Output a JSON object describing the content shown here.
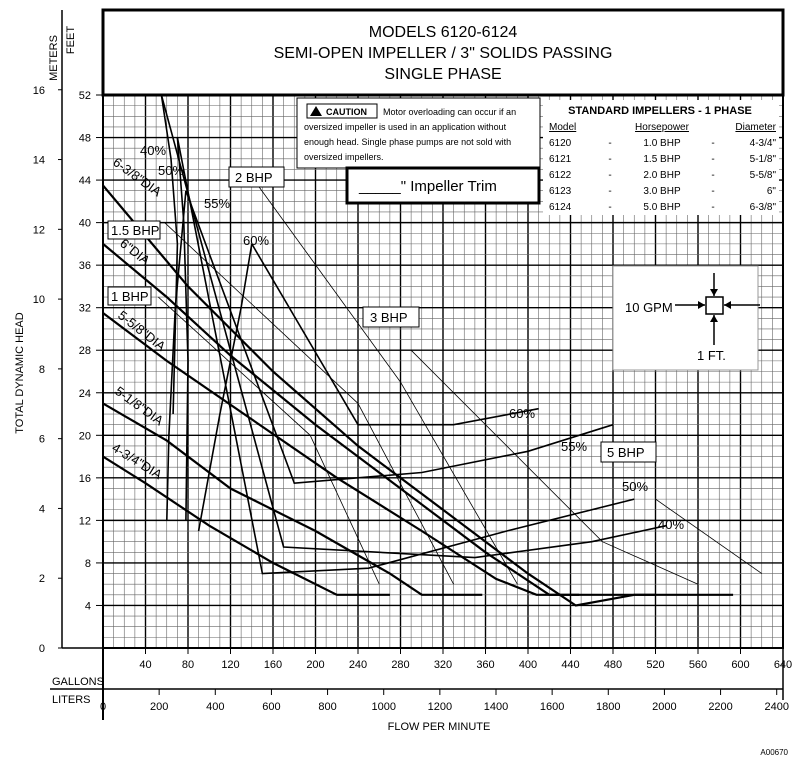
{
  "chart_data": {
    "type": "line",
    "title": [
      "MODELS 6120-6124",
      "SEMI-OPEN IMPELLER / 3\" SOLIDS PASSING",
      "SINGLE PHASE"
    ],
    "axis_unit_labels": {
      "meters": "METERS",
      "feet": "FEET",
      "gallons": "GALLONS",
      "liters": "LITERS"
    },
    "ylabel": "TOTAL DYNAMIC HEAD",
    "xlabel": "FLOW PER MINUTE",
    "x_gallons": {
      "min": 0,
      "max": 640,
      "ticks": [
        40,
        80,
        120,
        160,
        200,
        240,
        280,
        320,
        360,
        400,
        440,
        480,
        520,
        560,
        600,
        640
      ]
    },
    "x_liters": {
      "ticks": [
        0,
        200,
        400,
        600,
        800,
        1000,
        1200,
        1400,
        1600,
        1800,
        2000,
        2200,
        2400
      ]
    },
    "y_feet": {
      "min": 0,
      "max": 52,
      "ticks": [
        4,
        8,
        12,
        16,
        20,
        24,
        28,
        32,
        36,
        40,
        44,
        48,
        52
      ]
    },
    "y_meters": {
      "ticks": [
        0,
        2,
        4,
        6,
        8,
        10,
        12,
        14,
        16
      ]
    },
    "head_curves": [
      {
        "name": "6-3/8\" DIA",
        "points": [
          [
            0,
            43.5
          ],
          [
            80,
            34
          ],
          [
            160,
            26
          ],
          [
            240,
            19
          ],
          [
            320,
            13
          ],
          [
            400,
            7
          ],
          [
            445,
            4
          ],
          [
            500,
            5
          ],
          [
            593,
            5
          ]
        ]
      },
      {
        "name": "6\" DIA",
        "points": [
          [
            0,
            38
          ],
          [
            60,
            33
          ],
          [
            120,
            27.5
          ],
          [
            200,
            21
          ],
          [
            280,
            15
          ],
          [
            360,
            9
          ],
          [
            420,
            5
          ],
          [
            520,
            5
          ]
        ]
      },
      {
        "name": "5-5/8\" DIA",
        "points": [
          [
            0,
            31.5
          ],
          [
            60,
            27
          ],
          [
            140,
            21.5
          ],
          [
            220,
            16
          ],
          [
            300,
            11
          ],
          [
            370,
            6.5
          ],
          [
            408,
            5
          ],
          [
            448,
            5
          ]
        ]
      },
      {
        "name": "5-1/8\" DIA",
        "points": [
          [
            0,
            23
          ],
          [
            60,
            19.5
          ],
          [
            120,
            15
          ],
          [
            200,
            11
          ],
          [
            270,
            7
          ],
          [
            300,
            5
          ],
          [
            357,
            5
          ]
        ]
      },
      {
        "name": "4-3/4\" DIA",
        "points": [
          [
            0,
            18
          ],
          [
            40,
            15.5
          ],
          [
            100,
            11.5
          ],
          [
            160,
            8
          ],
          [
            220,
            5
          ],
          [
            270,
            5
          ]
        ]
      }
    ],
    "efficiency_curves": [
      {
        "label": "40%",
        "points": [
          [
            66,
            22
          ],
          [
            70,
            38
          ],
          [
            64,
            46
          ],
          [
            55,
            52
          ],
          [
            170,
            9.5
          ],
          [
            350,
            8.5
          ],
          [
            460,
            10
          ],
          [
            530,
            11.5
          ]
        ]
      },
      {
        "label": "50%",
        "points": [
          [
            78,
            12
          ],
          [
            80,
            27
          ],
          [
            76,
            40
          ],
          [
            70,
            48
          ],
          [
            150,
            7
          ],
          [
            250,
            7.5
          ],
          [
            380,
            11
          ],
          [
            500,
            14
          ]
        ]
      },
      {
        "label": "55%",
        "points": [
          [
            60,
            12
          ],
          [
            62,
            20
          ],
          [
            68,
            32
          ],
          [
            78,
            43
          ],
          [
            180,
            15.5
          ],
          [
            300,
            16.5
          ],
          [
            400,
            18.5
          ],
          [
            480,
            21
          ]
        ]
      },
      {
        "label": "60%",
        "points": [
          [
            90,
            11
          ],
          [
            110,
            22
          ],
          [
            130,
            32
          ],
          [
            140,
            38
          ],
          [
            240,
            21
          ],
          [
            330,
            21
          ],
          [
            410,
            22.5
          ]
        ]
      }
    ],
    "bhp_lines": [
      {
        "label": "1 BHP",
        "points": [
          [
            52,
            33
          ],
          [
            195,
            20
          ],
          [
            260,
            6
          ]
        ]
      },
      {
        "label": "1.5 BHP",
        "points": [
          [
            58,
            40
          ],
          [
            240,
            23
          ],
          [
            330,
            6
          ]
        ]
      },
      {
        "label": "2 BHP",
        "points": [
          [
            135,
            45
          ],
          [
            280,
            25
          ],
          [
            390,
            6
          ]
        ]
      },
      {
        "label": "3 BHP",
        "points": [
          [
            290,
            28
          ],
          [
            470,
            10
          ],
          [
            560,
            6
          ]
        ]
      },
      {
        "label": "5 BHP",
        "points": [
          [
            520,
            14
          ],
          [
            620,
            7
          ]
        ]
      }
    ],
    "curve_labels": {
      "d6375": "6-3/8\"DIA",
      "d6": "6\"DIA",
      "d5625": "5-5/8\"DIA",
      "d5125": "5-1/8\"DIA",
      "d475": "4-3/4\"DIA",
      "e40a": "40%",
      "e50a": "50%",
      "e55a": "55%",
      "e60a": "60%",
      "e60b": "60%",
      "e55b": "55%",
      "e50b": "50%",
      "e40b": "40%",
      "b1": "1 BHP",
      "b15": "1.5 BHP",
      "b2": "2 BHP",
      "b3": "3 BHP",
      "b5": "5 BHP"
    },
    "grid": true
  },
  "caution": {
    "badge": "CAUTION",
    "lines": [
      "Motor overloading can occur if an",
      "oversized impeller is used in an application without",
      "enough head. Single phase pumps are not sold with",
      "oversized impellers."
    ]
  },
  "trim_box": {
    "text": "_____\" Impeller Trim"
  },
  "impeller_table": {
    "title": "STANDARD IMPELLERS - 1 PHASE",
    "headers": [
      "Model",
      "Horsepower",
      "Diameter"
    ],
    "rows": [
      [
        "6120",
        "-",
        "1.0 BHP",
        "-",
        "4-3/4\""
      ],
      [
        "6121",
        "-",
        "1.5 BHP",
        "-",
        "5-1/8\""
      ],
      [
        "6122",
        "-",
        "2.0 BHP",
        "-",
        "5-5/8\""
      ],
      [
        "6123",
        "-",
        "3.0 BHP",
        "-",
        "6\""
      ],
      [
        "6124",
        "-",
        "5.0 BHP",
        "-",
        "6-3/8\""
      ]
    ]
  },
  "scale_box": {
    "gpm": "10 GPM",
    "ft": "1 FT."
  },
  "figure_code": "A00670"
}
